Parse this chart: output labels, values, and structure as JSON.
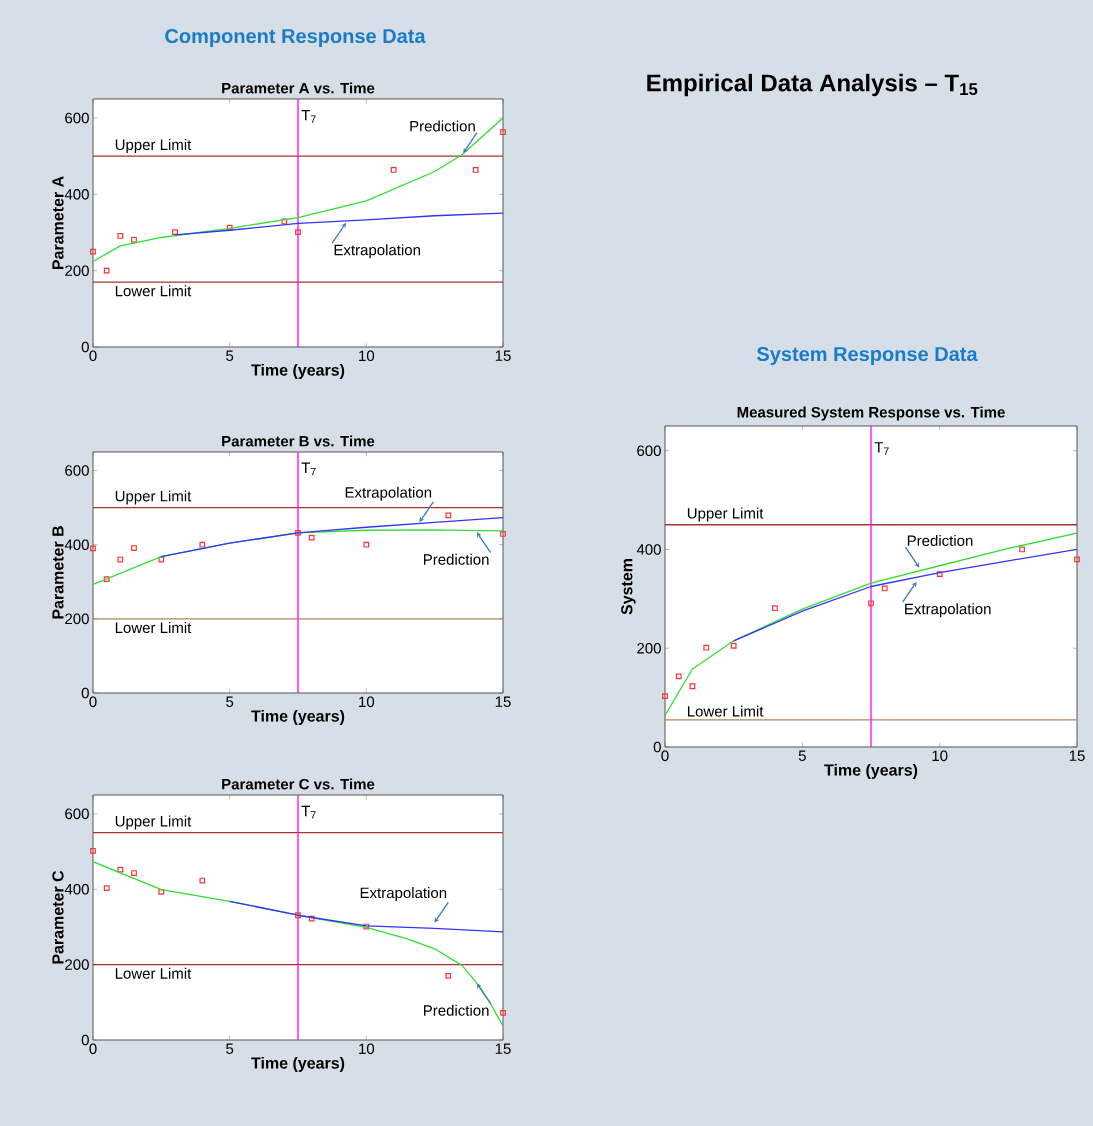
{
  "chart_data": [
    {
      "type": "other",
      "title": "Empirical Data Analysis – T$_{15}$",
      "annotations": [
        "Component Response Data",
        "System Response Data"
      ]
    },
    {
      "type": "line",
      "title": "Parameter A vs. Time",
      "xlabel": "Time (years)",
      "ylabel": "Parameter A",
      "xlim": [
        0,
        15
      ],
      "ylim": [
        0,
        650
      ],
      "xticks": [
        0,
        5,
        10,
        15
      ],
      "yticks": [
        0,
        200,
        400,
        600
      ],
      "ref_lines": [
        {
          "axis": "y",
          "value": 500,
          "label": "Upper Limit",
          "color": "#a83232"
        },
        {
          "axis": "y",
          "value": 170,
          "label": "Lower Limit",
          "color": "#a83232"
        },
        {
          "axis": "x",
          "value": 7.5,
          "label": "T$_{7}$",
          "color": "#ff00ff"
        }
      ],
      "annotations": [
        {
          "text": "Prediction",
          "x": 13.5,
          "y": 504
        },
        {
          "text": "Extrapolation",
          "x": 9.3,
          "y": 330
        }
      ],
      "series": [
        {
          "type": "scatter",
          "marker": "square",
          "color": "#ff3333",
          "x": [
            0,
            0.5,
            1,
            1.5,
            3,
            5,
            7,
            7.5,
            11,
            14,
            15
          ],
          "values": [
            250,
            200,
            291,
            281,
            301,
            313,
            329,
            301,
            464,
            464,
            563
          ]
        },
        {
          "type": "line",
          "color": "#33dd33",
          "x": [
            0,
            1,
            2.5,
            5,
            7.5,
            10,
            12.5,
            13.5,
            15
          ],
          "values": [
            224,
            265,
            287,
            311,
            339,
            383,
            460,
            504,
            600
          ]
        },
        {
          "type": "line",
          "color": "#3333ff",
          "x": [
            3,
            5,
            7.5,
            10,
            12.5,
            15
          ],
          "values": [
            294,
            306,
            324,
            333,
            344,
            351
          ]
        }
      ]
    },
    {
      "type": "line",
      "title": "Parameter B vs. Time",
      "xlabel": "Time (years)",
      "ylabel": "Parameter B",
      "xlim": [
        0,
        15
      ],
      "ylim": [
        0,
        650
      ],
      "xticks": [
        0,
        5,
        10,
        15
      ],
      "yticks": [
        0,
        200,
        400,
        600
      ],
      "ref_lines": [
        {
          "axis": "y",
          "value": 500,
          "label": "Upper Limit",
          "color": "#a83232"
        },
        {
          "axis": "y",
          "value": 200,
          "label": "Lower Limit",
          "color": "#b8835a"
        },
        {
          "axis": "x",
          "value": 7.5,
          "label": "T$_{7}$",
          "color": "#ff00ff"
        }
      ],
      "annotations": [
        {
          "text": "Extrapolation",
          "x": 11.9,
          "y": 456
        },
        {
          "text": "Prediction",
          "x": 14,
          "y": 438
        }
      ],
      "series": [
        {
          "type": "scatter",
          "marker": "square",
          "color": "#ff3333",
          "x": [
            0,
            0.5,
            1,
            1.5,
            2.5,
            4,
            7.5,
            8,
            10,
            13,
            15
          ],
          "values": [
            390,
            307,
            360,
            391,
            360,
            400,
            432,
            419,
            400,
            479,
            429
          ]
        },
        {
          "type": "line",
          "color": "#33dd33",
          "x": [
            0,
            2.5,
            5,
            7.5,
            10,
            12.5,
            14,
            15
          ],
          "values": [
            293,
            368,
            404,
            432,
            439,
            440,
            438,
            437
          ]
        },
        {
          "type": "line",
          "color": "#3333ff",
          "x": [
            2.5,
            5,
            7.5,
            10,
            12.5,
            15
          ],
          "values": [
            368,
            404,
            432,
            447,
            460,
            473
          ]
        }
      ]
    },
    {
      "type": "line",
      "title": "Parameter C vs. Time",
      "xlabel": "Time (years)",
      "ylabel": "Parameter C",
      "xlim": [
        0,
        15
      ],
      "ylim": [
        0,
        650
      ],
      "xticks": [
        0,
        5,
        10,
        15
      ],
      "yticks": [
        0,
        200,
        400,
        600
      ],
      "ref_lines": [
        {
          "axis": "y",
          "value": 550,
          "label": "Upper Limit",
          "color": "#a83232"
        },
        {
          "axis": "y",
          "value": 200,
          "label": "Lower Limit",
          "color": "#a83232"
        },
        {
          "axis": "x",
          "value": 7.5,
          "label": "T$_{7}$",
          "color": "#ff00ff"
        }
      ],
      "annotations": [
        {
          "text": "Extrapolation",
          "x": 12.45,
          "y": 307
        },
        {
          "text": "Prediction",
          "x": 14,
          "y": 155
        }
      ],
      "series": [
        {
          "type": "scatter",
          "marker": "square",
          "color": "#ff3333",
          "x": [
            0,
            0.5,
            1,
            1.5,
            2.5,
            4,
            7.5,
            8,
            10,
            13,
            15
          ],
          "values": [
            502,
            403,
            452,
            443,
            393,
            423,
            331,
            322,
            301,
            170,
            72
          ]
        },
        {
          "type": "line",
          "color": "#33dd33",
          "x": [
            0,
            2.5,
            5,
            7.5,
            10,
            11.5,
            12.5,
            13.5,
            14,
            14.5,
            15
          ],
          "values": [
            473,
            399,
            368,
            331,
            299,
            268,
            242,
            198,
            155,
            102,
            37
          ]
        },
        {
          "type": "line",
          "color": "#3333ff",
          "x": [
            5,
            7.5,
            10,
            12.5,
            15
          ],
          "values": [
            368,
            331,
            303,
            296,
            287
          ]
        }
      ]
    },
    {
      "type": "line",
      "title": "Measured System Response vs. Time",
      "xlabel": "Time (years)",
      "ylabel": "System",
      "xlim": [
        0,
        15
      ],
      "ylim": [
        0,
        650
      ],
      "xticks": [
        0,
        5,
        10,
        15
      ],
      "yticks": [
        0,
        200,
        400,
        600
      ],
      "ref_lines": [
        {
          "axis": "y",
          "value": 450,
          "label": "Upper Limit",
          "color": "#a83232"
        },
        {
          "axis": "y",
          "value": 55,
          "label": "Lower Limit",
          "color": "#b8835a"
        },
        {
          "axis": "x",
          "value": 7.5,
          "label": "T$_{7}$",
          "color": "#ff00ff"
        }
      ],
      "annotations": [
        {
          "text": "Prediction",
          "x": 9.3,
          "y": 360
        },
        {
          "text": "Extrapolation",
          "x": 9.2,
          "y": 338
        }
      ],
      "series": [
        {
          "type": "scatter",
          "marker": "square",
          "color": "#ff3333",
          "x": [
            0,
            0.5,
            1,
            1.5,
            2.5,
            4,
            7.5,
            8,
            10,
            13,
            15
          ],
          "values": [
            103,
            143,
            123,
            201,
            205,
            281,
            291,
            321,
            350,
            400,
            380
          ]
        },
        {
          "type": "line",
          "color": "#33dd33",
          "x": [
            0,
            1,
            2.5,
            5,
            7.5,
            10,
            12.5,
            15
          ],
          "values": [
            64,
            158,
            215,
            279,
            332,
            367,
            402,
            433
          ]
        },
        {
          "type": "line",
          "color": "#3333ff",
          "x": [
            2.5,
            5,
            7.5,
            10,
            12.5,
            15
          ],
          "values": [
            215,
            275,
            325,
            353,
            377,
            400
          ]
        }
      ]
    }
  ]
}
